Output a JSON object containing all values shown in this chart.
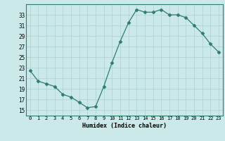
{
  "x": [
    0,
    1,
    2,
    3,
    4,
    5,
    6,
    7,
    8,
    9,
    10,
    11,
    12,
    13,
    14,
    15,
    16,
    17,
    18,
    19,
    20,
    21,
    22,
    23
  ],
  "y": [
    22.5,
    20.5,
    20.0,
    19.5,
    18.0,
    17.5,
    16.5,
    15.5,
    15.7,
    19.5,
    24.0,
    28.0,
    31.5,
    34.0,
    33.5,
    33.5,
    34.0,
    33.0,
    33.0,
    32.5,
    31.0,
    29.5,
    27.5,
    26.0
  ],
  "xlabel": "Humidex (Indice chaleur)",
  "ylim": [
    14,
    35
  ],
  "xlim": [
    -0.5,
    23.5
  ],
  "yticks": [
    15,
    17,
    19,
    21,
    23,
    25,
    27,
    29,
    31,
    33
  ],
  "xticks": [
    0,
    1,
    2,
    3,
    4,
    5,
    6,
    7,
    8,
    9,
    10,
    11,
    12,
    13,
    14,
    15,
    16,
    17,
    18,
    19,
    20,
    21,
    22,
    23
  ],
  "line_color": "#2e7d6e",
  "marker": "D",
  "marker_size": 2.5,
  "bg_color": "#cce9e9",
  "grid_color": "#b0d4d4",
  "spine_color": "#2e7d6e"
}
